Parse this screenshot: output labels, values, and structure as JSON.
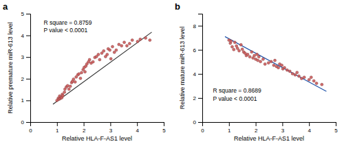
{
  "chart_data": [
    {
      "type": "scatter",
      "title": "a",
      "xlabel": "Relative HLA-F-AS1 level",
      "ylabel": "Relative premature miR-613 level",
      "xlim": [
        0,
        5
      ],
      "ylim": [
        0,
        5
      ],
      "xticks": [
        0,
        1,
        2,
        3,
        4,
        5
      ],
      "yticks": [
        0,
        1,
        2,
        3,
        4,
        5
      ],
      "annotations": [
        "R square = 0.8759",
        "P value < 0.0001"
      ],
      "series": [
        {
          "type": "scatter",
          "marker": "circle",
          "color": "#cd5c5c",
          "x": [
            1.0,
            1.05,
            1.07,
            1.1,
            1.12,
            1.15,
            1.18,
            1.2,
            1.22,
            1.28,
            1.3,
            1.35,
            1.4,
            1.45,
            1.5,
            1.55,
            1.58,
            1.62,
            1.68,
            1.72,
            1.78,
            1.82,
            1.88,
            1.92,
            1.98,
            2.02,
            2.05,
            2.08,
            2.12,
            2.18,
            2.22,
            2.28,
            2.35,
            2.42,
            2.48,
            2.55,
            2.6,
            2.68,
            2.75,
            2.82,
            2.88,
            2.92,
            2.98,
            3.02,
            3.08,
            3.15,
            3.22,
            3.32,
            3.42,
            3.52,
            3.62,
            3.72,
            3.82,
            4.02,
            4.12,
            4.32,
            4.48
          ],
          "values": [
            1.0,
            1.1,
            1.05,
            1.2,
            1.08,
            1.15,
            1.12,
            1.28,
            1.22,
            1.38,
            1.52,
            1.62,
            1.68,
            1.52,
            1.65,
            1.82,
            1.88,
            1.98,
            1.85,
            2.08,
            2.18,
            2.22,
            2.02,
            2.28,
            2.42,
            2.52,
            2.32,
            2.58,
            2.68,
            2.78,
            2.88,
            2.72,
            2.78,
            2.98,
            3.02,
            3.12,
            2.88,
            3.18,
            3.28,
            3.02,
            3.12,
            3.38,
            3.32,
            2.92,
            3.48,
            3.22,
            3.32,
            3.58,
            3.52,
            3.68,
            3.52,
            3.62,
            3.78,
            3.72,
            3.82,
            3.88,
            3.78
          ]
        },
        {
          "type": "line",
          "line_style": "solid",
          "color": "#333333",
          "x": [
            0.85,
            4.55
          ],
          "values": [
            0.82,
            4.15
          ]
        }
      ]
    },
    {
      "type": "scatter",
      "title": "b",
      "xlabel": "Relative HLA-F-AS1 level",
      "ylabel": "Relative mature miR-613 level",
      "xlim": [
        0,
        5
      ],
      "ylim": [
        0,
        9
      ],
      "xticks": [
        0,
        1,
        2,
        3,
        4,
        5
      ],
      "yticks": [
        0,
        2,
        4,
        6,
        8
      ],
      "annotations": [
        "R square = 0.8689",
        "P value < 0.0001"
      ],
      "series": [
        {
          "type": "scatter",
          "marker": "circle",
          "color": "#cd5c5c",
          "x": [
            1.0,
            1.05,
            1.08,
            1.12,
            1.18,
            1.22,
            1.28,
            1.32,
            1.38,
            1.45,
            1.5,
            1.55,
            1.6,
            1.65,
            1.7,
            1.78,
            1.85,
            1.9,
            1.95,
            2.0,
            2.05,
            2.08,
            2.12,
            2.18,
            2.28,
            2.35,
            2.48,
            2.58,
            2.68,
            2.72,
            2.78,
            2.85,
            2.9,
            2.98,
            3.02,
            3.08,
            3.18,
            3.28,
            3.38,
            3.48,
            3.55,
            3.62,
            3.72,
            3.82,
            4.0,
            4.08,
            4.18,
            4.28,
            4.48
          ],
          "values": [
            6.8,
            6.55,
            6.72,
            6.25,
            6.02,
            6.62,
            6.32,
            6.12,
            5.92,
            6.42,
            6.05,
            5.82,
            5.72,
            5.52,
            5.62,
            5.42,
            5.82,
            5.32,
            5.52,
            5.22,
            5.62,
            5.12,
            5.42,
            5.02,
            5.22,
            4.82,
            4.92,
            5.02,
            4.72,
            5.12,
            4.62,
            4.52,
            4.82,
            4.72,
            4.42,
            4.52,
            4.32,
            4.22,
            4.02,
            3.92,
            4.12,
            3.82,
            3.62,
            3.72,
            3.52,
            3.72,
            3.42,
            3.22,
            3.12
          ]
        },
        {
          "type": "line",
          "line_style": "solid",
          "color": "#2255aa",
          "x": [
            0.85,
            4.65
          ],
          "values": [
            7.1,
            2.55
          ]
        }
      ]
    }
  ]
}
